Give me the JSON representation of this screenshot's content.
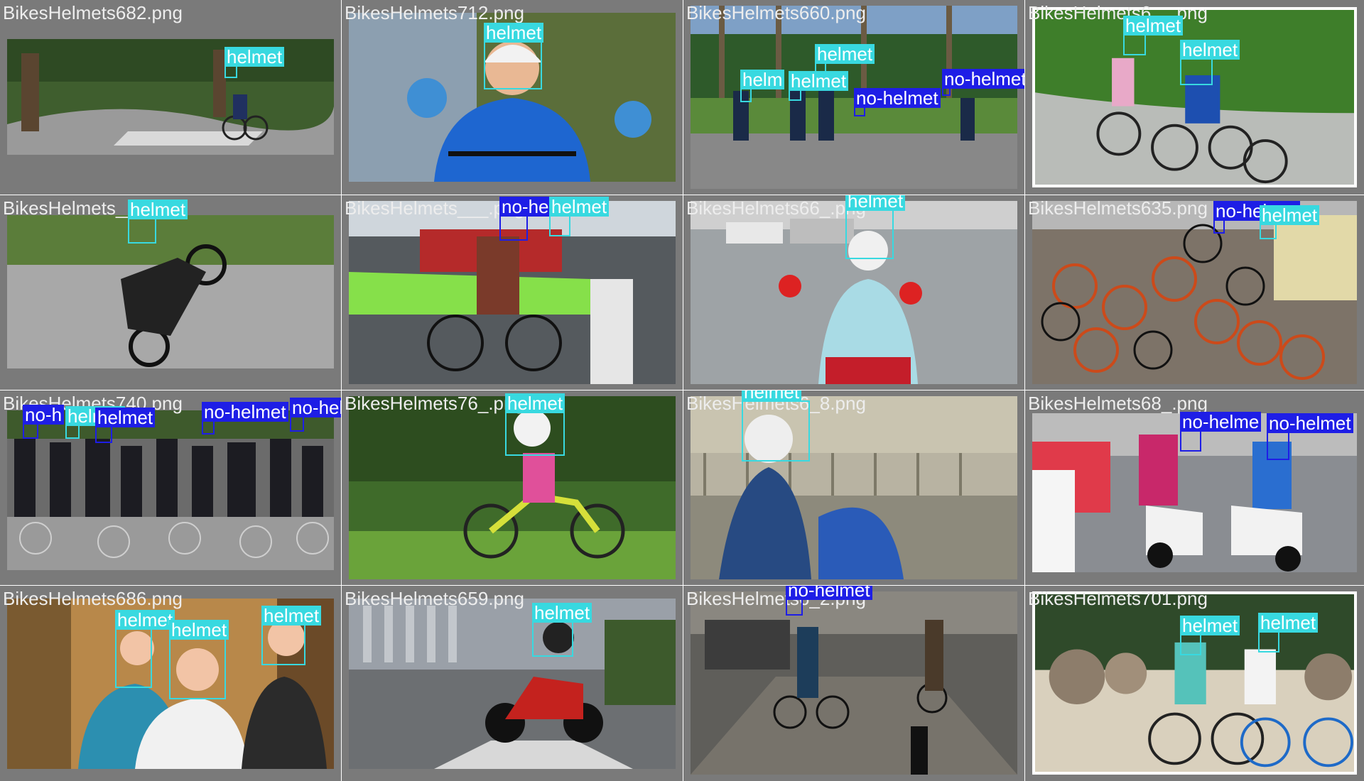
{
  "label_colors": {
    "helmet": "#38d9e0",
    "no-helmet": "#1e1ee6",
    "tile_border": "#7a7a7a"
  },
  "tiles": [
    {
      "name": "BikesHelmets682.png",
      "scene": "park cycling path",
      "labels": [
        "helmet"
      ]
    },
    {
      "name": "BikesHelmets712.png",
      "scene": "smiling boy on bike",
      "labels": [
        "helmet"
      ]
    },
    {
      "name": "BikesHelmets660.png",
      "scene": "palm tree cycling street",
      "labels": [
        "helmet",
        "helm",
        "helmet",
        "no-helmet",
        "no-helmet"
      ]
    },
    {
      "name": "BikesHelmets6__.png",
      "scene": "kids on red bikes",
      "labels": [
        "helmet",
        "helmet"
      ]
    },
    {
      "name": "BikesHelmets___.png",
      "scene": "motorcycle wheelie",
      "labels": [
        "helmet"
      ]
    },
    {
      "name": "BikesHelmets___.png",
      "scene": "cyclists at crosswalk",
      "labels": [
        "no-he",
        "helmet"
      ]
    },
    {
      "name": "BikesHelmets66_.png",
      "scene": "woman on scooter",
      "labels": [
        "helmet"
      ]
    },
    {
      "name": "BikesHelmets635.png",
      "scene": "pile of shared bikes",
      "labels": [
        "no-helmet",
        "helmet"
      ]
    },
    {
      "name": "BikesHelmets740.png",
      "scene": "crowd of cyclists",
      "labels": [
        "no-h",
        "helmet",
        "helmet",
        "no-helmet",
        "no-helmet"
      ]
    },
    {
      "name": "BikesHelmets76_.png",
      "scene": "toddler on balance bike",
      "labels": [
        "helmet"
      ]
    },
    {
      "name": "BikesHelmets6_8.png",
      "scene": "woman with scooter",
      "labels": [
        "helmet"
      ]
    },
    {
      "name": "BikesHelmets68_.png",
      "scene": "scooter riders in rain",
      "labels": [
        "no-helme",
        "no-helmet"
      ]
    },
    {
      "name": "BikesHelmets686.png",
      "scene": "family cycling in forest",
      "labels": [
        "helmet",
        "helmet",
        "helmet"
      ]
    },
    {
      "name": "BikesHelmets659.png",
      "scene": "red motorcycle in city",
      "labels": [
        "helmet"
      ]
    },
    {
      "name": "BikesHelmets6_2.png",
      "scene": "cobblestone street cyclists",
      "labels": [
        "no-helmet"
      ]
    },
    {
      "name": "BikesHelmets701.png",
      "scene": "two road cyclists",
      "labels": [
        "helmet",
        "helmet"
      ]
    }
  ]
}
